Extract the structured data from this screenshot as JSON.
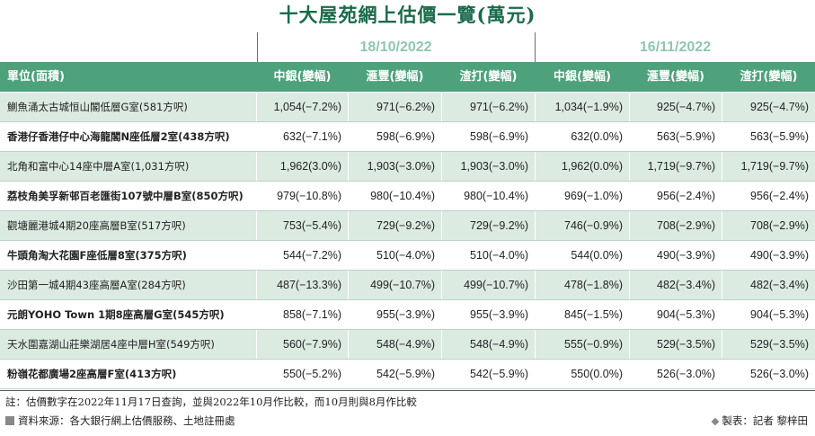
{
  "title": "十大屋苑網上估價一覽(萬元)",
  "dates": [
    "18/10/2022",
    "16/11/2022"
  ],
  "headers": [
    "單位(面積)",
    "中銀(變幅)",
    "滙豐(變幅)",
    "渣打(變幅)",
    "中銀(變幅)",
    "滙豐(變幅)",
    "渣打(變幅)"
  ],
  "rows": [
    {
      "name": "鰂魚涌太古城恒山閣低層G室(581方呎)",
      "bold": false,
      "values": [
        "1,054(−7.2%)",
        "971(−6.2%)",
        "971(−6.2%)",
        "1,034(−1.9%)",
        "925(−4.7%)",
        "925(−4.7%)"
      ]
    },
    {
      "name": "香港仔香港仔中心海龍閣N座低層2室(438方呎)",
      "bold": true,
      "values": [
        "632(−7.1%)",
        "598(−6.9%)",
        "598(−6.9%)",
        "632(0.0%)",
        "563(−5.9%)",
        "563(−5.9%)"
      ]
    },
    {
      "name": "北角和富中心14座中層A室(1,031方呎)",
      "bold": false,
      "values": [
        "1,962(3.0%)",
        "1,903(−3.0%)",
        "1,903(−3.0%)",
        "1,962(0.0%)",
        "1,719(−9.7%)",
        "1,719(−9.7%)"
      ]
    },
    {
      "name": "荔枝角美孚新邨百老匯街107號中層B室(850方呎)",
      "bold": true,
      "values": [
        "979(−10.8%)",
        "980(−10.4%)",
        "980(−10.4%)",
        "969(−1.0%)",
        "956(−2.4%)",
        "956(−2.4%)"
      ]
    },
    {
      "name": "觀塘麗港城4期20座高層B室(517方呎)",
      "bold": false,
      "values": [
        "753(−5.4%)",
        "729(−9.2%)",
        "729(−9.2%)",
        "746(−0.9%)",
        "708(−2.9%)",
        "708(−2.9%)"
      ]
    },
    {
      "name": "牛頭角淘大花園F座低層8室(375方呎)",
      "bold": true,
      "values": [
        "544(−7.2%)",
        "510(−4.0%)",
        "510(−4.0%)",
        "544(0.0%)",
        "490(−3.9%)",
        "490(−3.9%)"
      ]
    },
    {
      "name": "沙田第一城4期43座高層A室(284方呎)",
      "bold": false,
      "values": [
        "487(−13.3%)",
        "499(−10.7%)",
        "499(−10.7%)",
        "478(−1.8%)",
        "482(−3.4%)",
        "482(−3.4%)"
      ]
    },
    {
      "name": "元朗YOHO Town 1期8座高層G室(545方呎)",
      "bold": true,
      "values": [
        "858(−7.1%)",
        "955(−3.9%)",
        "955(−3.9%)",
        "845(−1.5%)",
        "904(−5.3%)",
        "904(−5.3%)"
      ]
    },
    {
      "name": "天水圍嘉湖山莊樂湖居4座中層H室(549方呎)",
      "bold": false,
      "values": [
        "560(−7.9%)",
        "548(−4.9%)",
        "548(−4.9%)",
        "555(−0.9%)",
        "529(−3.5%)",
        "529(−3.5%)"
      ]
    },
    {
      "name": "粉嶺花都廣場2座高層F室(413方呎)",
      "bold": true,
      "values": [
        "550(−5.2%)",
        "542(−5.9%)",
        "542(−5.9%)",
        "550(0.0%)",
        "526(−3.0%)",
        "526(−3.0%)"
      ]
    }
  ],
  "note": "註：估價數字在2022年11月17日查詢，並與2022年10月作比較，而10月則與8月作比較",
  "source": "資料來源：各大銀行網上估價服務、土地註冊處",
  "credit": "製表：記者 黎梓田",
  "colors": {
    "accent": "#4da27c",
    "stripe": "#dcebe2",
    "title": "#1a6b4a",
    "date": "#8ec6b0"
  }
}
